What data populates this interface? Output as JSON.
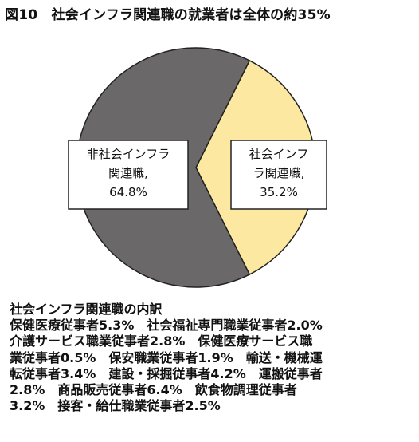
{
  "figure": {
    "title": "図10　社会インフラ関連職の就業者は全体の約35%"
  },
  "chart_data": {
    "type": "pie",
    "title": "図10　社会インフラ関連職の就業者は全体の約35%",
    "slices": [
      {
        "name": "社会インフラ関連職",
        "value": 35.2,
        "color": "#fce8a0",
        "label_lines": [
          "社会インフ",
          "ラ関連職,",
          "35.2%"
        ]
      },
      {
        "name": "非社会インフラ関連職",
        "value": 64.8,
        "color": "#6b6869",
        "label_lines": [
          "非社会インフラ",
          "関連職,",
          "64.8%"
        ]
      }
    ]
  },
  "breakdown": {
    "heading": "社会インフラ関連職の内訳",
    "lines": [
      "保健医療従事者5.3%　社会福祉専門職業従事者2.0%",
      "介護サービス職業従事者2.8%　保健医療サービス職",
      "業従事者0.5%　保安職業従事者1.9%　輸送・機械運",
      "転従事者3.4%　建設・採掘従事者4.2%　運搬従事者",
      "2.8%　商品販売従事者6.4%　飲食物調理従事者",
      "3.2%　接客・給仕職業従事者2.5%"
    ]
  }
}
